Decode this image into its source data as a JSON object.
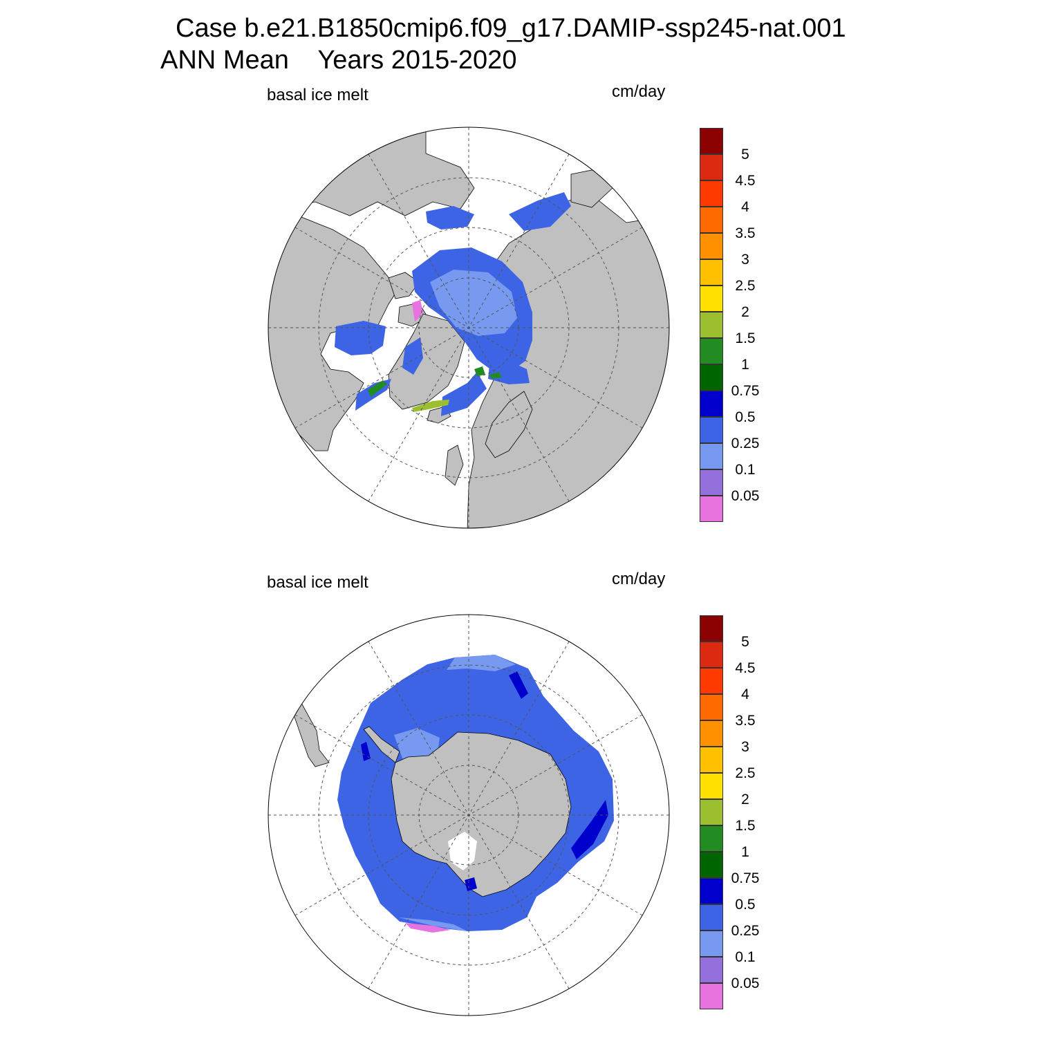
{
  "title": {
    "line1": "Case b.e21.B1850cmip6.f09_g17.DAMIP-ssp245-nat.001",
    "line2": "ANN Mean    Years 2015-2020"
  },
  "panels": [
    {
      "id": "north",
      "left_label": "basal ice melt",
      "right_label": "cm/day",
      "projection": "north-polar-stereographic"
    },
    {
      "id": "south",
      "left_label": "basal ice melt",
      "right_label": "cm/day",
      "projection": "south-polar-stereographic"
    }
  ],
  "colorbar": {
    "labels": [
      "5",
      "4.5",
      "4",
      "3.5",
      "3",
      "2.5",
      "2",
      "1.5",
      "1",
      "0.75",
      "0.5",
      "0.25",
      "0.1",
      "0.05"
    ],
    "colors_top_to_bottom": [
      "#8b0000",
      "#dc2a12",
      "#ff3a00",
      "#ff6a00",
      "#ff9100",
      "#ffc000",
      "#ffe000",
      "#9cbf30",
      "#228b22",
      "#006400",
      "#0000cd",
      "#3c64e4",
      "#7799f0",
      "#9370db",
      "#e673e0"
    ]
  },
  "colors": {
    "land": "#c0c0c0",
    "ocean": "#ffffff",
    "grid": "#555555"
  }
}
